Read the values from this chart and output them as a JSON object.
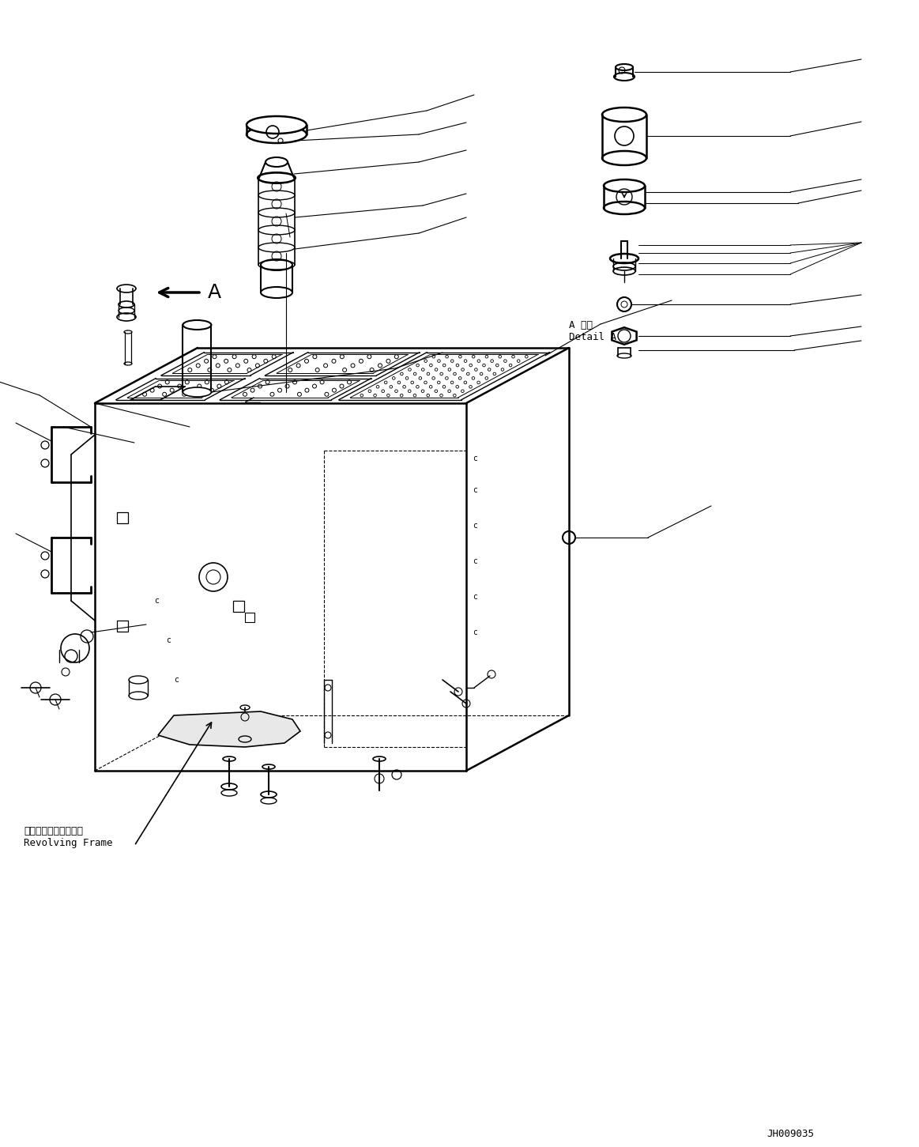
{
  "bg_color": "#ffffff",
  "line_color": "#000000",
  "fig_width": 11.63,
  "fig_height": 14.51,
  "dpi": 100,
  "label_a_detail": "A 詳細\nDetail A",
  "label_revolving": "レボルビングフレーム\nRevolving Frame",
  "watermark": "JH009035"
}
